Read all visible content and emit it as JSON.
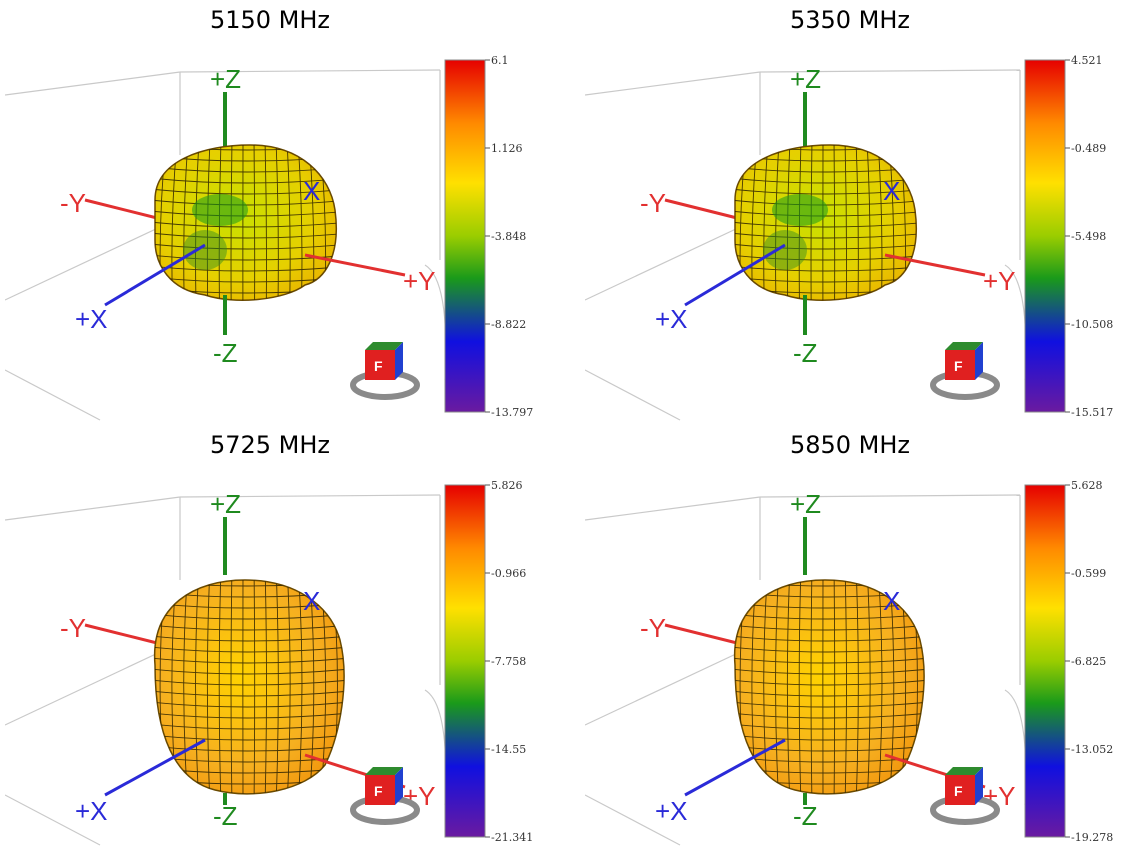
{
  "axes": {
    "pz": "+Z",
    "nz": "-Z",
    "ny": "-Y",
    "py": "+Y",
    "px": "+X",
    "x": "X"
  },
  "cube": {
    "face_front": "F",
    "face_top": "",
    "face_right": ""
  },
  "colors": {
    "z_axis": "#1f8a1f",
    "y_axis": "#e23030",
    "x_axis": "#2a2ad8"
  },
  "chart_data": [
    {
      "type": "heatmap",
      "title": "5150 MHz",
      "colorbar_ticks": [
        "6.1",
        "1.126",
        "-3.848",
        "-8.822",
        "-13.797"
      ],
      "range": [
        -13.797,
        6.1
      ]
    },
    {
      "type": "heatmap",
      "title": "5350 MHz",
      "colorbar_ticks": [
        "4.521",
        "-0.489",
        "-5.498",
        "-10.508",
        "-15.517"
      ],
      "range": [
        -15.517,
        4.521
      ]
    },
    {
      "type": "heatmap",
      "title": "5725 MHz",
      "colorbar_ticks": [
        "5.826",
        "-0.966",
        "-7.758",
        "-14.55",
        "-21.341"
      ],
      "range": [
        -21.341,
        5.826
      ]
    },
    {
      "type": "heatmap",
      "title": "5850 MHz",
      "colorbar_ticks": [
        "5.628",
        "-0.599",
        "-6.825",
        "-13.052",
        "-19.278"
      ],
      "range": [
        -19.278,
        5.628
      ]
    }
  ]
}
